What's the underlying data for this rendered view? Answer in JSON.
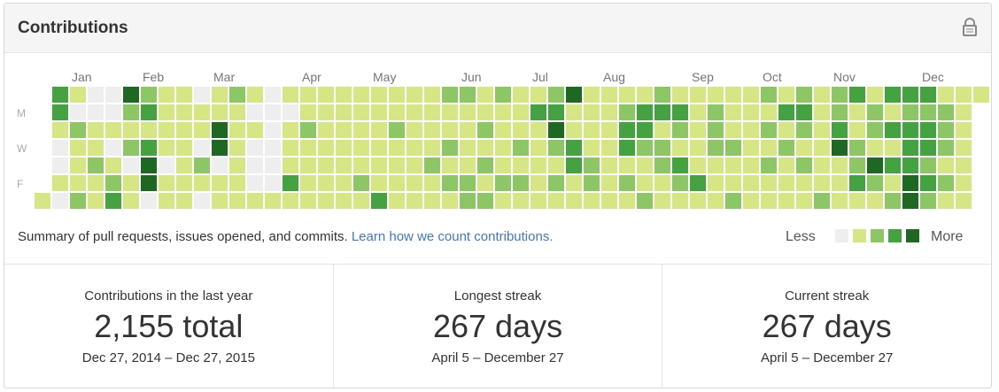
{
  "header": {
    "title": "Contributions"
  },
  "calendar": {
    "months": [
      "Jan",
      "Feb",
      "Mar",
      "Apr",
      "May",
      "Jun",
      "Jul",
      "Aug",
      "Sep",
      "Oct",
      "Nov",
      "Dec"
    ],
    "days": [
      "M",
      "W",
      "F"
    ],
    "weeks": [
      [
        null,
        null,
        null,
        null,
        null,
        null,
        1
      ],
      [
        3,
        3,
        1,
        0,
        0,
        1,
        0
      ],
      [
        1,
        0,
        2,
        1,
        1,
        1,
        2
      ],
      [
        0,
        0,
        1,
        1,
        2,
        1,
        1
      ],
      [
        0,
        0,
        1,
        0,
        1,
        2,
        3
      ],
      [
        4,
        2,
        1,
        2,
        0,
        1,
        1
      ],
      [
        2,
        3,
        1,
        3,
        4,
        4,
        0
      ],
      [
        1,
        1,
        1,
        1,
        0,
        1,
        1
      ],
      [
        1,
        1,
        1,
        1,
        1,
        1,
        1
      ],
      [
        0,
        1,
        1,
        0,
        2,
        1,
        0
      ],
      [
        1,
        1,
        4,
        4,
        0,
        1,
        1
      ],
      [
        2,
        1,
        1,
        1,
        1,
        1,
        1
      ],
      [
        1,
        0,
        1,
        0,
        0,
        0,
        1
      ],
      [
        0,
        0,
        0,
        0,
        0,
        0,
        1
      ],
      [
        1,
        0,
        1,
        1,
        1,
        3,
        1
      ],
      [
        1,
        1,
        2,
        1,
        1,
        1,
        1
      ],
      [
        1,
        1,
        1,
        1,
        1,
        1,
        1
      ],
      [
        1,
        1,
        1,
        1,
        1,
        1,
        1
      ],
      [
        1,
        1,
        1,
        1,
        1,
        2,
        1
      ],
      [
        1,
        1,
        1,
        1,
        1,
        1,
        3
      ],
      [
        1,
        1,
        2,
        1,
        1,
        1,
        1
      ],
      [
        1,
        1,
        1,
        1,
        1,
        1,
        1
      ],
      [
        1,
        1,
        1,
        1,
        2,
        1,
        1
      ],
      [
        2,
        1,
        1,
        2,
        1,
        2,
        1
      ],
      [
        2,
        1,
        1,
        1,
        1,
        2,
        2
      ],
      [
        1,
        1,
        2,
        1,
        2,
        1,
        2
      ],
      [
        2,
        1,
        1,
        1,
        1,
        2,
        1
      ],
      [
        1,
        1,
        1,
        2,
        1,
        2,
        1
      ],
      [
        1,
        3,
        1,
        1,
        1,
        1,
        1
      ],
      [
        2,
        3,
        4,
        2,
        1,
        2,
        1
      ],
      [
        4,
        1,
        1,
        3,
        3,
        1,
        1
      ],
      [
        1,
        1,
        1,
        1,
        2,
        2,
        1
      ],
      [
        1,
        1,
        1,
        1,
        1,
        1,
        1
      ],
      [
        1,
        2,
        3,
        3,
        1,
        2,
        1
      ],
      [
        1,
        3,
        3,
        2,
        1,
        1,
        2
      ],
      [
        2,
        3,
        1,
        2,
        2,
        1,
        1
      ],
      [
        1,
        3,
        2,
        1,
        3,
        2,
        1
      ],
      [
        1,
        1,
        1,
        1,
        1,
        3,
        1
      ],
      [
        1,
        2,
        2,
        2,
        1,
        1,
        1
      ],
      [
        1,
        1,
        1,
        2,
        1,
        1,
        2
      ],
      [
        1,
        1,
        1,
        1,
        1,
        1,
        1
      ],
      [
        2,
        1,
        2,
        1,
        2,
        1,
        1
      ],
      [
        1,
        3,
        1,
        2,
        1,
        1,
        1
      ],
      [
        2,
        3,
        2,
        1,
        2,
        1,
        1
      ],
      [
        1,
        1,
        1,
        1,
        1,
        1,
        2
      ],
      [
        2,
        2,
        3,
        4,
        1,
        1,
        1
      ],
      [
        3,
        1,
        1,
        2,
        2,
        3,
        1
      ],
      [
        1,
        2,
        2,
        1,
        4,
        2,
        1
      ],
      [
        3,
        1,
        3,
        1,
        3,
        1,
        2
      ],
      [
        3,
        2,
        3,
        3,
        3,
        4,
        4
      ],
      [
        3,
        2,
        3,
        3,
        2,
        3,
        2
      ],
      [
        1,
        2,
        2,
        2,
        1,
        2,
        1
      ],
      [
        1,
        1,
        1,
        1,
        1,
        1,
        1
      ],
      [
        1,
        null,
        null,
        null,
        null,
        null,
        null
      ]
    ],
    "colors": [
      "#eeeeee",
      "#d6e685",
      "#8cc665",
      "#44a340",
      "#1e6823"
    ],
    "summary": "Summary of pull requests, issues opened, and commits.",
    "link": "Learn how we count contributions."
  },
  "legend": {
    "less": "Less",
    "more": "More",
    "levels": [
      0,
      1,
      2,
      3,
      4
    ]
  },
  "stats": [
    {
      "label": "Contributions in the last year",
      "value": "2,155 total",
      "range": "Dec 27, 2014 – Dec 27, 2015"
    },
    {
      "label": "Longest streak",
      "value": "267 days",
      "range": "April 5 – December 27"
    },
    {
      "label": "Current streak",
      "value": "267 days",
      "range": "April 5 – December 27"
    }
  ]
}
